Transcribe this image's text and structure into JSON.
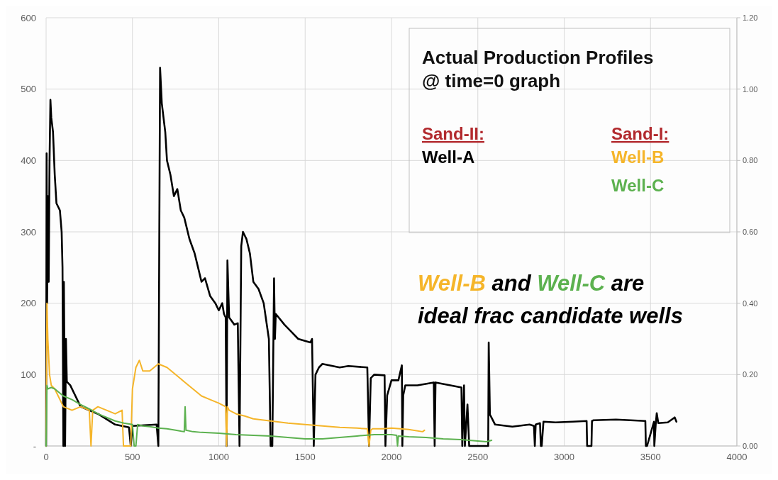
{
  "chart_data": {
    "type": "line",
    "legend_title": "Actual Production Profiles @ time=0 graph",
    "annotations": [
      "Sand-II:",
      "Sand-I:",
      "Well-B and Well-C are ideal frac candidate wells"
    ],
    "xlim": [
      0,
      4000
    ],
    "xticks": [
      0,
      500,
      1000,
      1500,
      2000,
      2500,
      3000,
      3500,
      4000
    ],
    "ylim": [
      0,
      600
    ],
    "yticks": [
      {
        "value": 0,
        "label": "-"
      },
      100,
      200,
      300,
      400,
      500,
      600
    ],
    "y2lim": [
      0,
      1.2
    ],
    "y2ticks": [
      {
        "value": 0,
        "label": "0.00"
      },
      {
        "value": 0.2,
        "label": "0.20"
      },
      {
        "value": 0.4,
        "label": "0.40"
      },
      {
        "value": 0.6,
        "label": "0.60"
      },
      {
        "value": 0.8,
        "label": "0.80"
      },
      {
        "value": 1,
        "label": "1.00"
      },
      {
        "value": 1.2,
        "label": "1.20"
      }
    ],
    "grid": true,
    "legend": "top right",
    "line_style": "solid",
    "series": [
      {
        "name": "Well-A",
        "color": "#000000",
        "x": [
          0,
          3,
          6,
          10,
          15,
          20,
          25,
          30,
          40,
          50,
          60,
          80,
          90,
          95,
          100,
          103,
          110,
          115,
          120,
          140,
          160,
          200,
          300,
          400,
          480,
          490,
          500,
          640,
          650,
          660,
          670,
          690,
          700,
          720,
          740,
          760,
          780,
          800,
          830,
          860,
          880,
          900,
          920,
          950,
          980,
          1000,
          1020,
          1030,
          1040,
          1045,
          1050,
          1060,
          1090,
          1110,
          1120,
          1130,
          1140,
          1160,
          1180,
          1200,
          1230,
          1260,
          1290,
          1300,
          1310,
          1320,
          1325,
          1330,
          1380,
          1420,
          1460,
          1530,
          1540,
          1550,
          1560,
          1580,
          1600,
          1700,
          1750,
          1860,
          1870,
          1880,
          1900,
          1960,
          1965,
          1975,
          2000,
          2040,
          2060,
          2063,
          2068,
          2080,
          2150,
          2245,
          2250,
          2255,
          2320,
          2405,
          2410,
          2420,
          2425,
          2440,
          2450,
          2455,
          2560,
          2563,
          2570,
          2600,
          2700,
          2800,
          2825,
          2830,
          2835,
          2860,
          2865,
          2870,
          2880,
          2950,
          3050,
          3130,
          3133,
          3140,
          3158,
          3161,
          3170,
          3300,
          3470,
          3473,
          3480,
          3520,
          3522,
          3530,
          3536,
          3545,
          3600,
          3640,
          3650
        ],
        "values": [
          0,
          410,
          200,
          350,
          230,
          400,
          485,
          460,
          440,
          380,
          340,
          330,
          300,
          250,
          0,
          230,
          0,
          150,
          90,
          85,
          75,
          55,
          45,
          30,
          26,
          0,
          28,
          30,
          0,
          530,
          480,
          440,
          400,
          380,
          350,
          360,
          330,
          320,
          290,
          270,
          250,
          230,
          235,
          210,
          200,
          190,
          200,
          185,
          180,
          0,
          260,
          180,
          170,
          172,
          0,
          280,
          300,
          290,
          270,
          230,
          220,
          200,
          150,
          0,
          0,
          235,
          150,
          185,
          170,
          160,
          150,
          145,
          150,
          0,
          100,
          110,
          115,
          110,
          112,
          110,
          0,
          95,
          100,
          99,
          0,
          71,
          92,
          92,
          113,
          0,
          71,
          85,
          85,
          89,
          0,
          89,
          86,
          82,
          0,
          85,
          0,
          58,
          0,
          0,
          0,
          145,
          44,
          30,
          27,
          30,
          28,
          0,
          30,
          32,
          0,
          0,
          34,
          33,
          34,
          35,
          0,
          0,
          0,
          35,
          36,
          37,
          35,
          0,
          0,
          34,
          0,
          30,
          46,
          32,
          33,
          40,
          34
        ]
      },
      {
        "name": "Well-B",
        "color": "#f5b52a",
        "x": [
          0,
          5,
          10,
          20,
          30,
          50,
          70,
          100,
          150,
          200,
          250,
          260,
          270,
          300,
          350,
          400,
          440,
          448,
          460,
          490,
          500,
          520,
          540,
          560,
          600,
          650,
          700,
          750,
          800,
          850,
          900,
          950,
          1000,
          1040,
          1045,
          1050,
          1060,
          1100,
          1150,
          1200,
          1300,
          1400,
          1500,
          1600,
          1700,
          1800,
          1860,
          1870,
          1880,
          1890,
          1950,
          2000,
          2100,
          2180,
          2191
        ],
        "values": [
          0,
          200,
          150,
          100,
          85,
          80,
          70,
          55,
          50,
          55,
          50,
          0,
          50,
          55,
          50,
          45,
          50,
          0,
          0,
          0,
          80,
          110,
          120,
          105,
          105,
          115,
          110,
          100,
          90,
          80,
          70,
          65,
          60,
          55,
          0,
          55,
          50,
          45,
          42,
          38,
          35,
          32,
          30,
          28,
          26,
          25,
          24,
          0,
          22,
          24,
          24,
          25,
          23,
          20,
          22
        ]
      },
      {
        "name": "Well-C",
        "color": "#5cb14f",
        "x": [
          0,
          5,
          10,
          30,
          50,
          100,
          150,
          200,
          250,
          300,
          350,
          400,
          450,
          500,
          510,
          520,
          530,
          560,
          600,
          650,
          700,
          750,
          800,
          805,
          810,
          850,
          900,
          1000,
          1100,
          1200,
          1300,
          1400,
          1500,
          1600,
          1700,
          1800,
          1900,
          2000,
          2030,
          2035,
          2040,
          2100,
          2200,
          2300,
          2400,
          2500,
          2550,
          2580
        ],
        "values": [
          0,
          85,
          80,
          82,
          80,
          70,
          65,
          58,
          52,
          45,
          40,
          35,
          32,
          30,
          0,
          0,
          30,
          28,
          27,
          25,
          24,
          22,
          20,
          55,
          22,
          20,
          19,
          18,
          16,
          15,
          14,
          12,
          10,
          10,
          12,
          14,
          16,
          16,
          15,
          0,
          14,
          13,
          12,
          10,
          9,
          7,
          6,
          8
        ]
      }
    ]
  }
}
